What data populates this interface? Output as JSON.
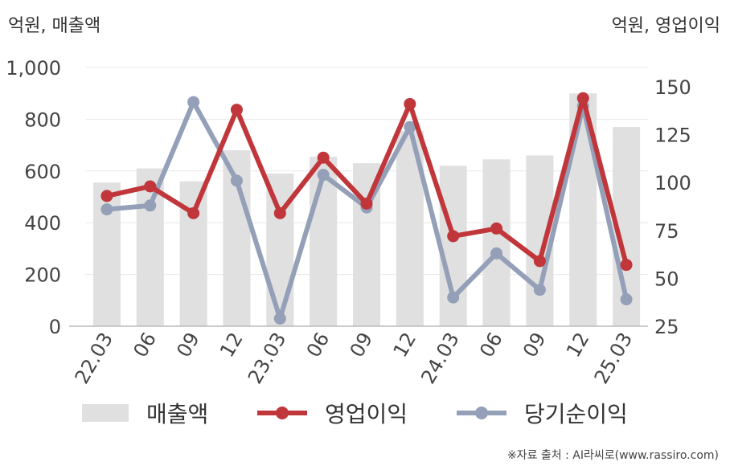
{
  "unit_left": "억원, 매출액",
  "unit_right": "억원, 영업이익",
  "source": "※자료 출처 : AI라씨로(www.rassiro.com)",
  "colors": {
    "bar": "#e0e0e0",
    "op": "#c0363a",
    "net": "#94a0b8",
    "axis": "#bbbbbb",
    "grid": "#e8e8e8",
    "text": "#444444"
  },
  "chart_data": {
    "type": "bar",
    "categories": [
      "22.03",
      "06",
      "09",
      "12",
      "23.03",
      "06",
      "09",
      "12",
      "24.03",
      "06",
      "09",
      "12",
      "25.03"
    ],
    "left_axis": {
      "ylim": [
        0,
        1000
      ],
      "ticks": [
        "0",
        "200",
        "400",
        "600",
        "800",
        "1,000"
      ]
    },
    "right_axis": {
      "ylim": [
        25,
        160
      ],
      "ticks": [
        "25",
        "50",
        "75",
        "100",
        "125",
        "150"
      ]
    },
    "series": [
      {
        "name": "매출액",
        "type": "bar",
        "axis": "left",
        "values": [
          555,
          610,
          560,
          680,
          590,
          655,
          630,
          755,
          620,
          645,
          660,
          900,
          770
        ]
      },
      {
        "name": "영업이익",
        "type": "line",
        "axis": "right",
        "values": [
          93,
          98,
          84,
          138,
          84,
          113,
          89,
          141,
          72,
          76,
          59,
          144,
          57
        ]
      },
      {
        "name": "당기순이익",
        "type": "line",
        "axis": "right",
        "values": [
          86,
          88,
          142,
          101,
          29,
          104,
          87,
          129,
          40,
          63,
          44,
          140,
          39
        ]
      }
    ],
    "legend": [
      "매출액",
      "영업이익",
      "당기순이익"
    ],
    "legend_position": "bottom",
    "grid": true
  }
}
